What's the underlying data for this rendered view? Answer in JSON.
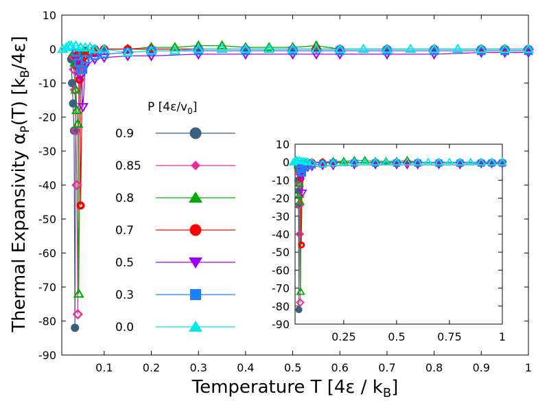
{
  "chart_data": {
    "type": "line",
    "xlabel_main": "Temperature T [4",
    "xlabel_eps": "ε",
    "xlabel_rest": " / k",
    "xlabel_sub": "B",
    "xlabel_close": "]",
    "ylabel_main": "Thermal Expansivity ",
    "ylabel_alpha": "α",
    "ylabel_psub": "P",
    "ylabel_t": "(T) [k",
    "ylabel_bsub": "B",
    "ylabel_tail": "/4",
    "ylabel_eps": "ε",
    "ylabel_close": "]",
    "xlim": [
      0.01,
      1.0
    ],
    "ylim": [
      -90,
      10
    ],
    "xticks": [
      {
        "v": 0.1,
        "label": "0.1"
      },
      {
        "v": 0.2,
        "label": "0.2"
      },
      {
        "v": 0.3,
        "label": "0.3"
      },
      {
        "v": 0.4,
        "label": "0.4"
      },
      {
        "v": 0.5,
        "label": "0.5"
      },
      {
        "v": 0.6,
        "label": "0.6"
      },
      {
        "v": 0.7,
        "label": "0.7"
      },
      {
        "v": 0.8,
        "label": "0.8"
      },
      {
        "v": 0.9,
        "label": "0.9"
      },
      {
        "v": 1.0,
        "label": "1"
      }
    ],
    "yticks": [
      {
        "v": 10,
        "label": "10"
      },
      {
        "v": 0,
        "label": "0"
      },
      {
        "v": -10,
        "label": "-10"
      },
      {
        "v": -20,
        "label": "-20"
      },
      {
        "v": -30,
        "label": "-30"
      },
      {
        "v": -40,
        "label": "-40"
      },
      {
        "v": -50,
        "label": "-50"
      },
      {
        "v": -60,
        "label": "-60"
      },
      {
        "v": -70,
        "label": "-70"
      },
      {
        "v": -80,
        "label": "-80"
      },
      {
        "v": -90,
        "label": "-90"
      }
    ],
    "legend_title_main": "P [4",
    "legend_title_eps": "ε",
    "legend_title_v": "/v",
    "legend_title_sub": "0",
    "legend_title_close": "]",
    "series": [
      {
        "name": "0.9",
        "color": "#3a6080",
        "marker": "circle",
        "points": [
          [
            0.03,
            -3
          ],
          [
            0.032,
            -10
          ],
          [
            0.034,
            -16
          ],
          [
            0.036,
            -24
          ],
          [
            0.038,
            -82
          ],
          [
            0.04,
            -5
          ],
          [
            0.045,
            -1.5
          ],
          [
            0.05,
            -1
          ],
          [
            0.06,
            -0.5
          ],
          [
            0.08,
            0
          ],
          [
            0.1,
            0
          ],
          [
            0.15,
            0
          ],
          [
            0.2,
            0
          ],
          [
            0.3,
            0
          ],
          [
            0.4,
            0
          ],
          [
            0.5,
            0
          ],
          [
            0.55,
            0
          ],
          [
            0.6,
            0
          ],
          [
            0.7,
            0
          ],
          [
            0.8,
            0
          ],
          [
            0.9,
            0
          ],
          [
            0.95,
            0
          ],
          [
            1.0,
            0
          ]
        ]
      },
      {
        "name": "0.85",
        "color": "#ee2c9a",
        "marker": "diamond",
        "points": [
          [
            0.034,
            -2
          ],
          [
            0.036,
            -6
          ],
          [
            0.038,
            -12
          ],
          [
            0.04,
            -24
          ],
          [
            0.042,
            -40
          ],
          [
            0.044,
            -78
          ],
          [
            0.046,
            -6
          ],
          [
            0.05,
            -3
          ],
          [
            0.06,
            -2
          ],
          [
            0.08,
            -1
          ],
          [
            0.1,
            0
          ],
          [
            0.15,
            0
          ],
          [
            0.2,
            0
          ],
          [
            0.3,
            0
          ],
          [
            0.4,
            0
          ],
          [
            0.5,
            0
          ],
          [
            0.55,
            0
          ],
          [
            0.6,
            0
          ],
          [
            0.7,
            0
          ],
          [
            0.8,
            0
          ],
          [
            0.9,
            0
          ],
          [
            0.95,
            0
          ],
          [
            1.0,
            0
          ]
        ]
      },
      {
        "name": "0.8",
        "color": "#00aa00",
        "marker": "triangle",
        "points": [
          [
            0.036,
            -1
          ],
          [
            0.038,
            -4
          ],
          [
            0.04,
            -12
          ],
          [
            0.042,
            -18
          ],
          [
            0.044,
            -22
          ],
          [
            0.046,
            -72
          ],
          [
            0.05,
            -3
          ],
          [
            0.06,
            -1
          ],
          [
            0.08,
            0
          ],
          [
            0.1,
            0
          ],
          [
            0.15,
            0
          ],
          [
            0.2,
            0.5
          ],
          [
            0.25,
            0.5
          ],
          [
            0.3,
            1
          ],
          [
            0.35,
            1
          ],
          [
            0.4,
            0.5
          ],
          [
            0.45,
            0.5
          ],
          [
            0.5,
            0.5
          ],
          [
            0.55,
            1
          ],
          [
            0.6,
            0
          ],
          [
            0.7,
            0
          ],
          [
            0.8,
            0
          ],
          [
            0.9,
            0
          ],
          [
            0.95,
            0
          ],
          [
            1.0,
            0
          ]
        ]
      },
      {
        "name": "0.7",
        "color": "#ff0000",
        "marker": "octagon",
        "points": [
          [
            0.04,
            -2
          ],
          [
            0.044,
            -5
          ],
          [
            0.048,
            -9
          ],
          [
            0.05,
            -46
          ],
          [
            0.054,
            -4
          ],
          [
            0.06,
            -2
          ],
          [
            0.08,
            -1
          ],
          [
            0.1,
            0
          ],
          [
            0.15,
            0
          ],
          [
            0.2,
            0
          ],
          [
            0.3,
            0
          ],
          [
            0.4,
            0
          ],
          [
            0.5,
            0
          ],
          [
            0.55,
            0
          ],
          [
            0.6,
            0
          ],
          [
            0.7,
            0
          ],
          [
            0.8,
            0
          ],
          [
            0.9,
            0
          ],
          [
            0.95,
            0
          ],
          [
            1.0,
            0
          ]
        ]
      },
      {
        "name": "0.5",
        "color": "#9d00ff",
        "marker": "invtriangle",
        "points": [
          [
            0.045,
            -3
          ],
          [
            0.05,
            -8
          ],
          [
            0.055,
            -17
          ],
          [
            0.06,
            -5
          ],
          [
            0.08,
            -3
          ],
          [
            0.1,
            -2.5
          ],
          [
            0.15,
            -2
          ],
          [
            0.2,
            -2
          ],
          [
            0.3,
            -1.5
          ],
          [
            0.4,
            -1.5
          ],
          [
            0.5,
            -1.5
          ],
          [
            0.55,
            -1.5
          ],
          [
            0.6,
            -1.5
          ],
          [
            0.7,
            -1.5
          ],
          [
            0.8,
            -1.5
          ],
          [
            0.9,
            -1
          ],
          [
            0.95,
            -1
          ],
          [
            1.0,
            -1
          ]
        ]
      },
      {
        "name": "0.3",
        "color": "#1e80ff",
        "marker": "square",
        "points": [
          [
            0.04,
            -1
          ],
          [
            0.045,
            -4
          ],
          [
            0.05,
            -6
          ],
          [
            0.055,
            -6
          ],
          [
            0.06,
            -3
          ],
          [
            0.08,
            -2
          ],
          [
            0.1,
            -1.5
          ],
          [
            0.15,
            -1
          ],
          [
            0.2,
            -0.5
          ],
          [
            0.3,
            -0.5
          ],
          [
            0.4,
            -0.5
          ],
          [
            0.5,
            -0.5
          ],
          [
            0.6,
            -0.5
          ],
          [
            0.7,
            -0.5
          ],
          [
            0.8,
            -0.5
          ],
          [
            0.9,
            -0.5
          ],
          [
            0.95,
            -0.5
          ],
          [
            1.0,
            -0.5
          ]
        ]
      },
      {
        "name": "0.0",
        "color": "#00eaea",
        "marker": "triangle",
        "points": [
          [
            0.012,
            0
          ],
          [
            0.02,
            0.5
          ],
          [
            0.025,
            1
          ],
          [
            0.03,
            1
          ],
          [
            0.04,
            1
          ],
          [
            0.05,
            0.5
          ],
          [
            0.06,
            0.5
          ],
          [
            0.07,
            0.5
          ],
          [
            0.08,
            0
          ],
          [
            0.1,
            0
          ],
          [
            0.15,
            -1
          ],
          [
            0.2,
            -0.5
          ],
          [
            0.25,
            -0.5
          ],
          [
            0.3,
            0
          ],
          [
            0.35,
            0
          ],
          [
            0.4,
            0
          ],
          [
            0.45,
            0
          ],
          [
            0.5,
            0
          ],
          [
            0.55,
            0
          ],
          [
            0.6,
            0
          ],
          [
            0.65,
            0
          ],
          [
            0.7,
            0
          ],
          [
            0.75,
            0
          ],
          [
            0.8,
            0
          ],
          [
            0.85,
            0
          ],
          [
            0.9,
            0
          ],
          [
            0.95,
            0
          ],
          [
            1.0,
            0
          ]
        ]
      }
    ],
    "inset": {
      "xlim": [
        0.02,
        1.0
      ],
      "ylim": [
        -90,
        10
      ],
      "xticks": [
        {
          "v": 0.25,
          "label": "0.25"
        },
        {
          "v": 0.5,
          "label": "0.5"
        },
        {
          "v": 0.75,
          "label": "0.75"
        },
        {
          "v": 1.0,
          "label": "1"
        }
      ],
      "yticks": [
        {
          "v": 10,
          "label": "10"
        },
        {
          "v": 0,
          "label": "0"
        },
        {
          "v": -10,
          "label": "-10"
        },
        {
          "v": -20,
          "label": "-20"
        },
        {
          "v": -30,
          "label": "-30"
        },
        {
          "v": -40,
          "label": "-40"
        },
        {
          "v": -50,
          "label": "-50"
        },
        {
          "v": -60,
          "label": "-60"
        },
        {
          "v": -70,
          "label": "-70"
        },
        {
          "v": -80,
          "label": "-80"
        },
        {
          "v": -90,
          "label": "-90"
        }
      ]
    }
  }
}
